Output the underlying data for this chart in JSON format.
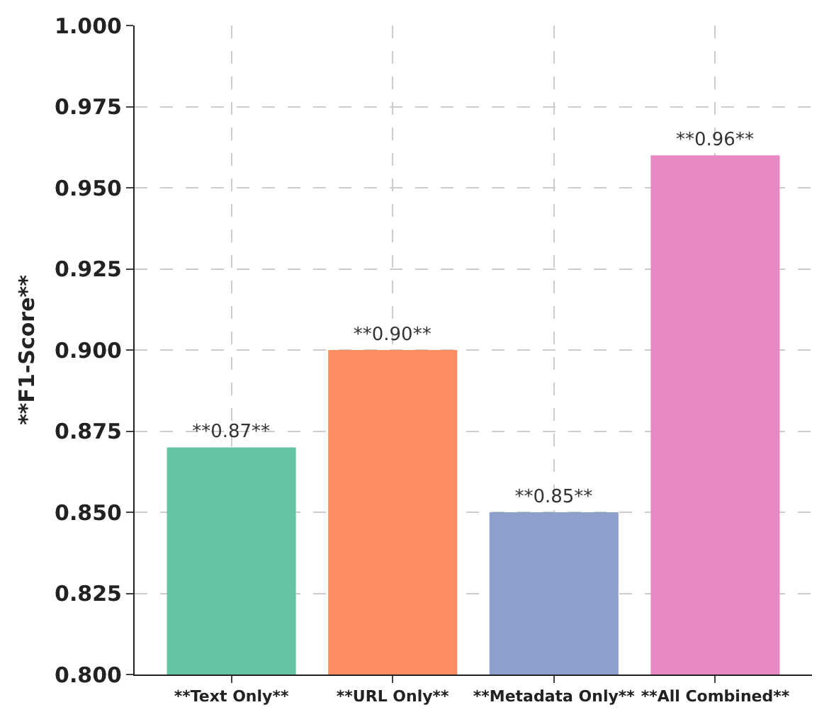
{
  "chart_data": {
    "type": "bar",
    "ylabel": "**F1-Score**",
    "categories": [
      "**Text Only**",
      "**URL Only**",
      "**Metadata Only**",
      "**All Combined**"
    ],
    "values": [
      0.87,
      0.9,
      0.85,
      0.96
    ],
    "colors": [
      "#66c2a5",
      "#fc8d62",
      "#8da0cb",
      "#e78ac3"
    ],
    "value_labels": [
      "**0.87**",
      "**0.90**",
      "**0.85**",
      "**0.96**"
    ],
    "ylim": [
      0.8,
      1.0
    ],
    "yticks": [
      {
        "value": 0.8,
        "label": "0.800"
      },
      {
        "value": 0.825,
        "label": "0.825"
      },
      {
        "value": 0.85,
        "label": "0.850"
      },
      {
        "value": 0.875,
        "label": "0.875"
      },
      {
        "value": 0.9,
        "label": "0.900"
      },
      {
        "value": 0.925,
        "label": "0.925"
      },
      {
        "value": 0.95,
        "label": "0.950"
      },
      {
        "value": 0.975,
        "label": "0.975"
      },
      {
        "value": 1.0,
        "label": "1.000"
      }
    ],
    "grid": true
  }
}
